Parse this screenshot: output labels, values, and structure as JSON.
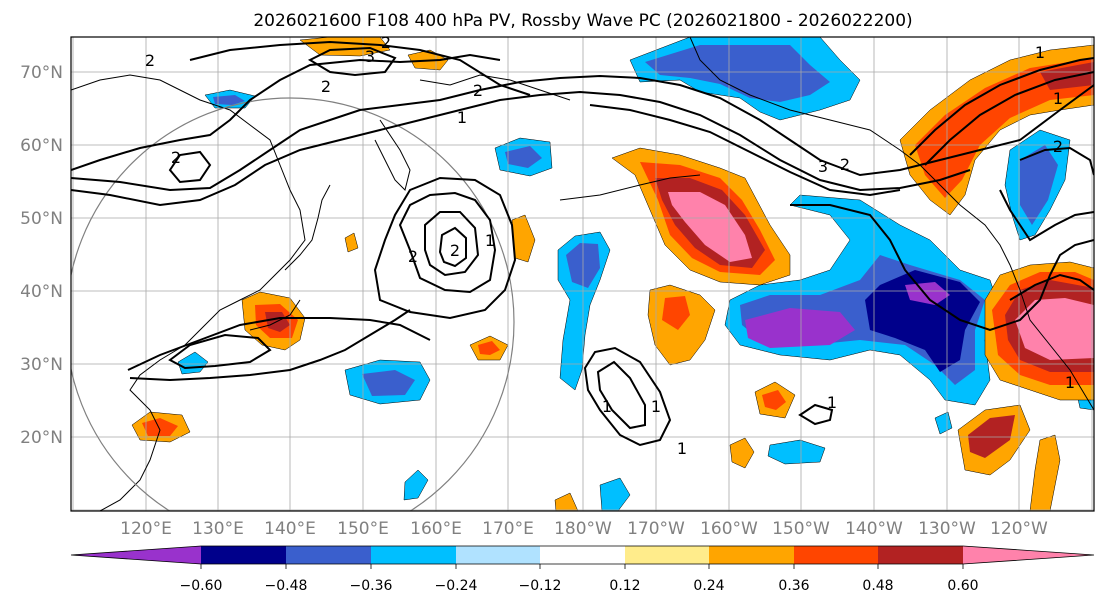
{
  "title": "2026021600 F108 400 hPa PV, Rossby Wave PC (2026021800 - 2026022200)",
  "lat_ticks": [
    "70°N",
    "60°N",
    "50°N",
    "40°N",
    "30°N",
    "20°N"
  ],
  "lon_ticks": [
    "120°E",
    "130°E",
    "140°E",
    "150°E",
    "160°E",
    "170°E",
    "180°W",
    "170°W",
    "160°W",
    "150°W",
    "140°W",
    "130°W",
    "120°W"
  ],
  "colorbar": {
    "ticks": [
      "−0.60",
      "−0.48",
      "−0.36",
      "−0.24",
      "−0.12",
      "0.12",
      "0.24",
      "0.36",
      "0.48",
      "0.60"
    ],
    "colors": [
      "#9932cc",
      "#00008b",
      "#3a5fcd",
      "#00bfff",
      "#b0e2ff",
      "#ffffff",
      "#ffec8b",
      "#ffa500",
      "#ff4500",
      "#b22222",
      "#ff82ab"
    ]
  },
  "contour_labels": [
    "2",
    "2",
    "3",
    "2",
    "1",
    "2",
    "2",
    "2",
    "1",
    "2",
    "2",
    "3",
    "2",
    "1",
    "1",
    "1",
    "1",
    "1",
    "1",
    "1"
  ]
}
